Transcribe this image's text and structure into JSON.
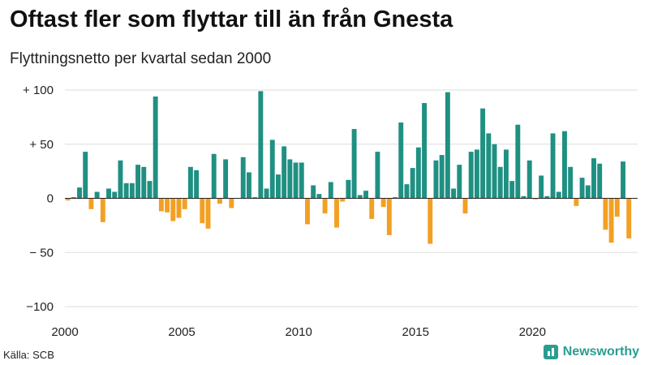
{
  "header": {
    "title": "Oftast fler som flyttar till än från Gnesta",
    "subtitle": "Flyttningsnetto per kvartal sedan 2000"
  },
  "footer": {
    "source": "Källa: SCB",
    "brand": "Newsworthy"
  },
  "colors": {
    "positive": "#1f9082",
    "negative": "#f2a024",
    "grid": "#dddddd"
  },
  "chart_data": {
    "type": "bar",
    "title": "Oftast fler som flyttar till än från Gnesta",
    "subtitle": "Flyttningsnetto per kvartal sedan 2000",
    "xlabel": "",
    "ylabel": "",
    "ylim": [
      -100,
      100
    ],
    "xlim": [
      2000,
      2024.5
    ],
    "y_ticks": [
      {
        "v": 100,
        "label": "+ 100"
      },
      {
        "v": 50,
        "label": "+  50"
      },
      {
        "v": 0,
        "label": "0"
      },
      {
        "v": -50,
        "label": "− 50"
      },
      {
        "v": -100,
        "label": "−100"
      }
    ],
    "x_ticks": [
      {
        "v": 2000,
        "label": "2000"
      },
      {
        "v": 2005,
        "label": "2005"
      },
      {
        "v": 2010,
        "label": "2010"
      },
      {
        "v": 2015,
        "label": "2015"
      },
      {
        "v": 2020,
        "label": "2020"
      }
    ],
    "grid": true,
    "series": [
      {
        "values": [
          -2,
          1,
          10,
          43,
          -10,
          6,
          -22,
          9,
          6,
          35,
          14,
          14,
          31,
          29,
          16,
          94,
          -12,
          -13,
          -21,
          -18,
          -10,
          29,
          26,
          -23,
          -28,
          41,
          -5,
          36,
          -9,
          0,
          38,
          24,
          1,
          99,
          9,
          54,
          22,
          48,
          36,
          33,
          33,
          -24,
          12,
          4,
          -14,
          15,
          -27,
          -3,
          17,
          64,
          3,
          7,
          -19,
          43,
          -8,
          -34,
          1,
          70,
          13,
          28,
          47,
          88,
          -42,
          35,
          40,
          98,
          9,
          31,
          -14,
          43,
          45,
          83,
          60,
          50,
          29,
          45,
          16,
          68,
          2,
          35,
          -1,
          21,
          2,
          60,
          6,
          62,
          29,
          -7,
          19,
          12,
          37,
          32,
          -29,
          -41,
          -17,
          34,
          -37
        ]
      }
    ]
  }
}
